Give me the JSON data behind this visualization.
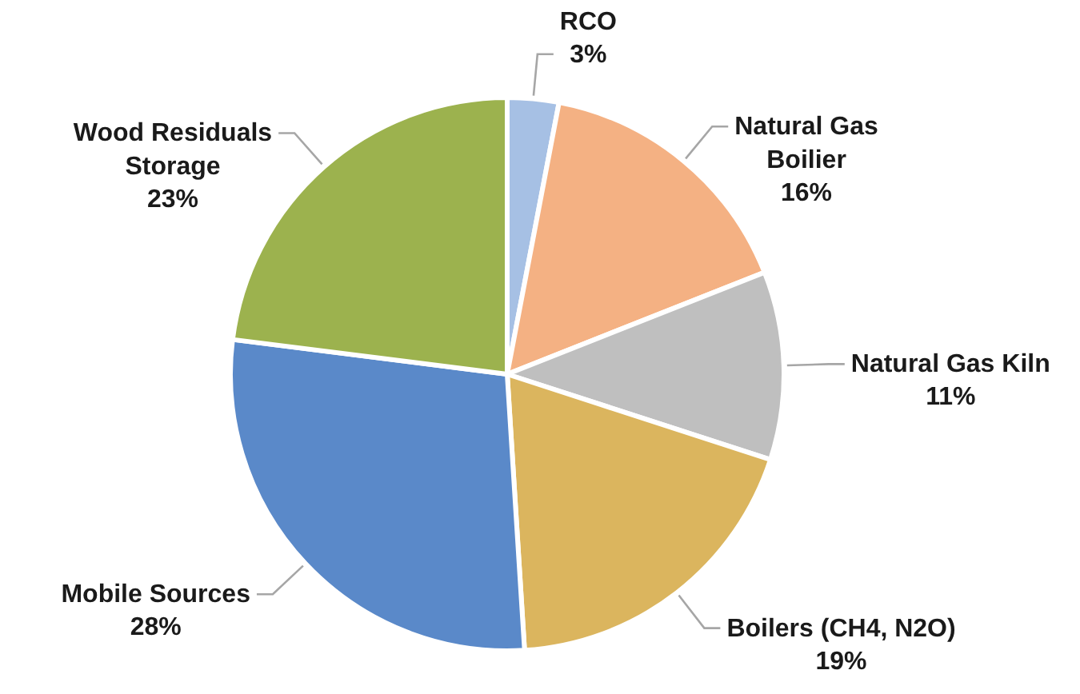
{
  "chart_data": {
    "type": "pie",
    "categories": [
      "RCO",
      "Natural Gas Boilier",
      "Natural Gas Kiln",
      "Boilers (CH4, N2O)",
      "Mobile Sources",
      "Wood Residuals Storage"
    ],
    "values": [
      3,
      16,
      11,
      19,
      28,
      23
    ],
    "colors": [
      "#a6c0e4",
      "#f4b183",
      "#bfbfbf",
      "#dbb55e",
      "#5a89c9",
      "#9cb24e"
    ],
    "value_labels": [
      "3%",
      "16%",
      "11%",
      "19%",
      "28%",
      "23%"
    ]
  }
}
